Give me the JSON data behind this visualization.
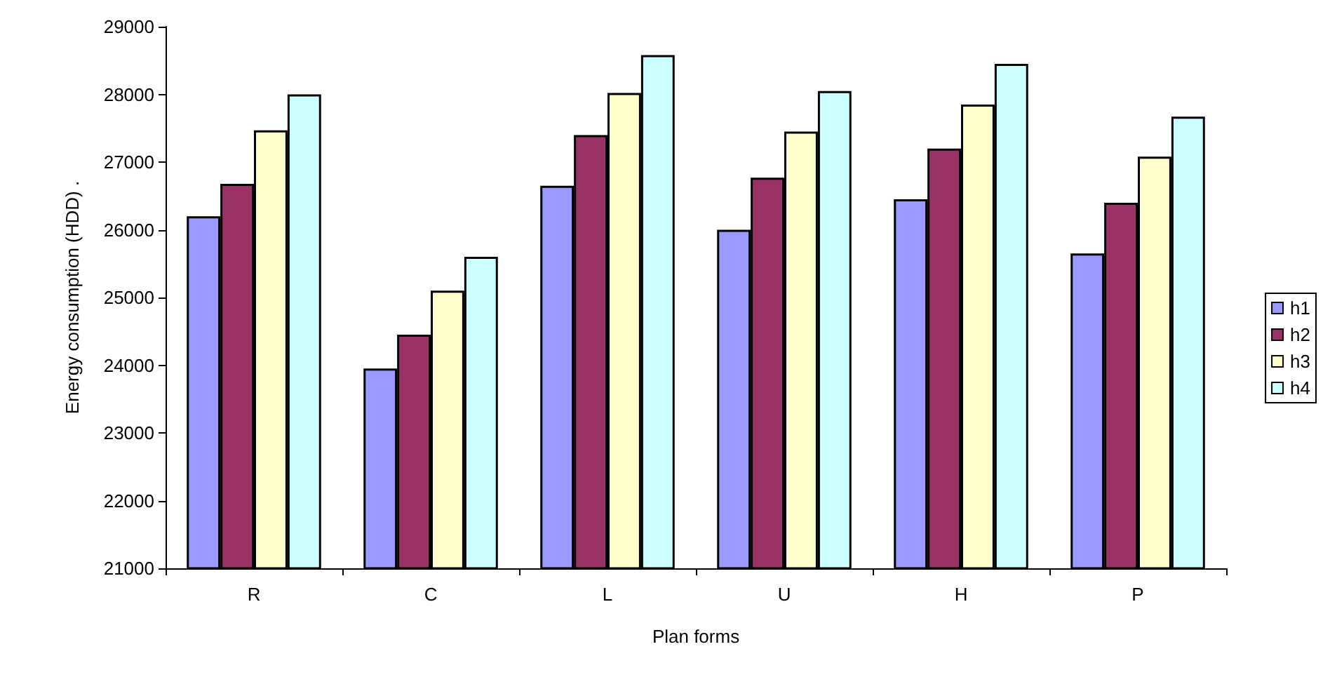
{
  "chart_data": {
    "type": "bar",
    "xlabel": "Plan forms",
    "ylabel": "Energy consumption (HDD) .",
    "categories": [
      "R",
      "C",
      "L",
      "U",
      "H",
      "P"
    ],
    "series": [
      {
        "name": "h1",
        "color": "#9999ff",
        "values": [
          26200,
          23950,
          26650,
          26000,
          26450,
          25650
        ]
      },
      {
        "name": "h2",
        "color": "#993366",
        "values": [
          26680,
          24450,
          27400,
          26770,
          27200,
          26400
        ]
      },
      {
        "name": "h3",
        "color": "#ffffcc",
        "values": [
          27470,
          25100,
          28020,
          27450,
          27850,
          27080
        ]
      },
      {
        "name": "h4",
        "color": "#ccffff",
        "values": [
          28000,
          25600,
          28580,
          28050,
          28450,
          27670
        ]
      }
    ],
    "ylim": [
      21000,
      29000
    ],
    "yticks": [
      21000,
      22000,
      23000,
      24000,
      25000,
      26000,
      27000,
      28000,
      29000
    ],
    "grid": false,
    "legend": "right"
  }
}
